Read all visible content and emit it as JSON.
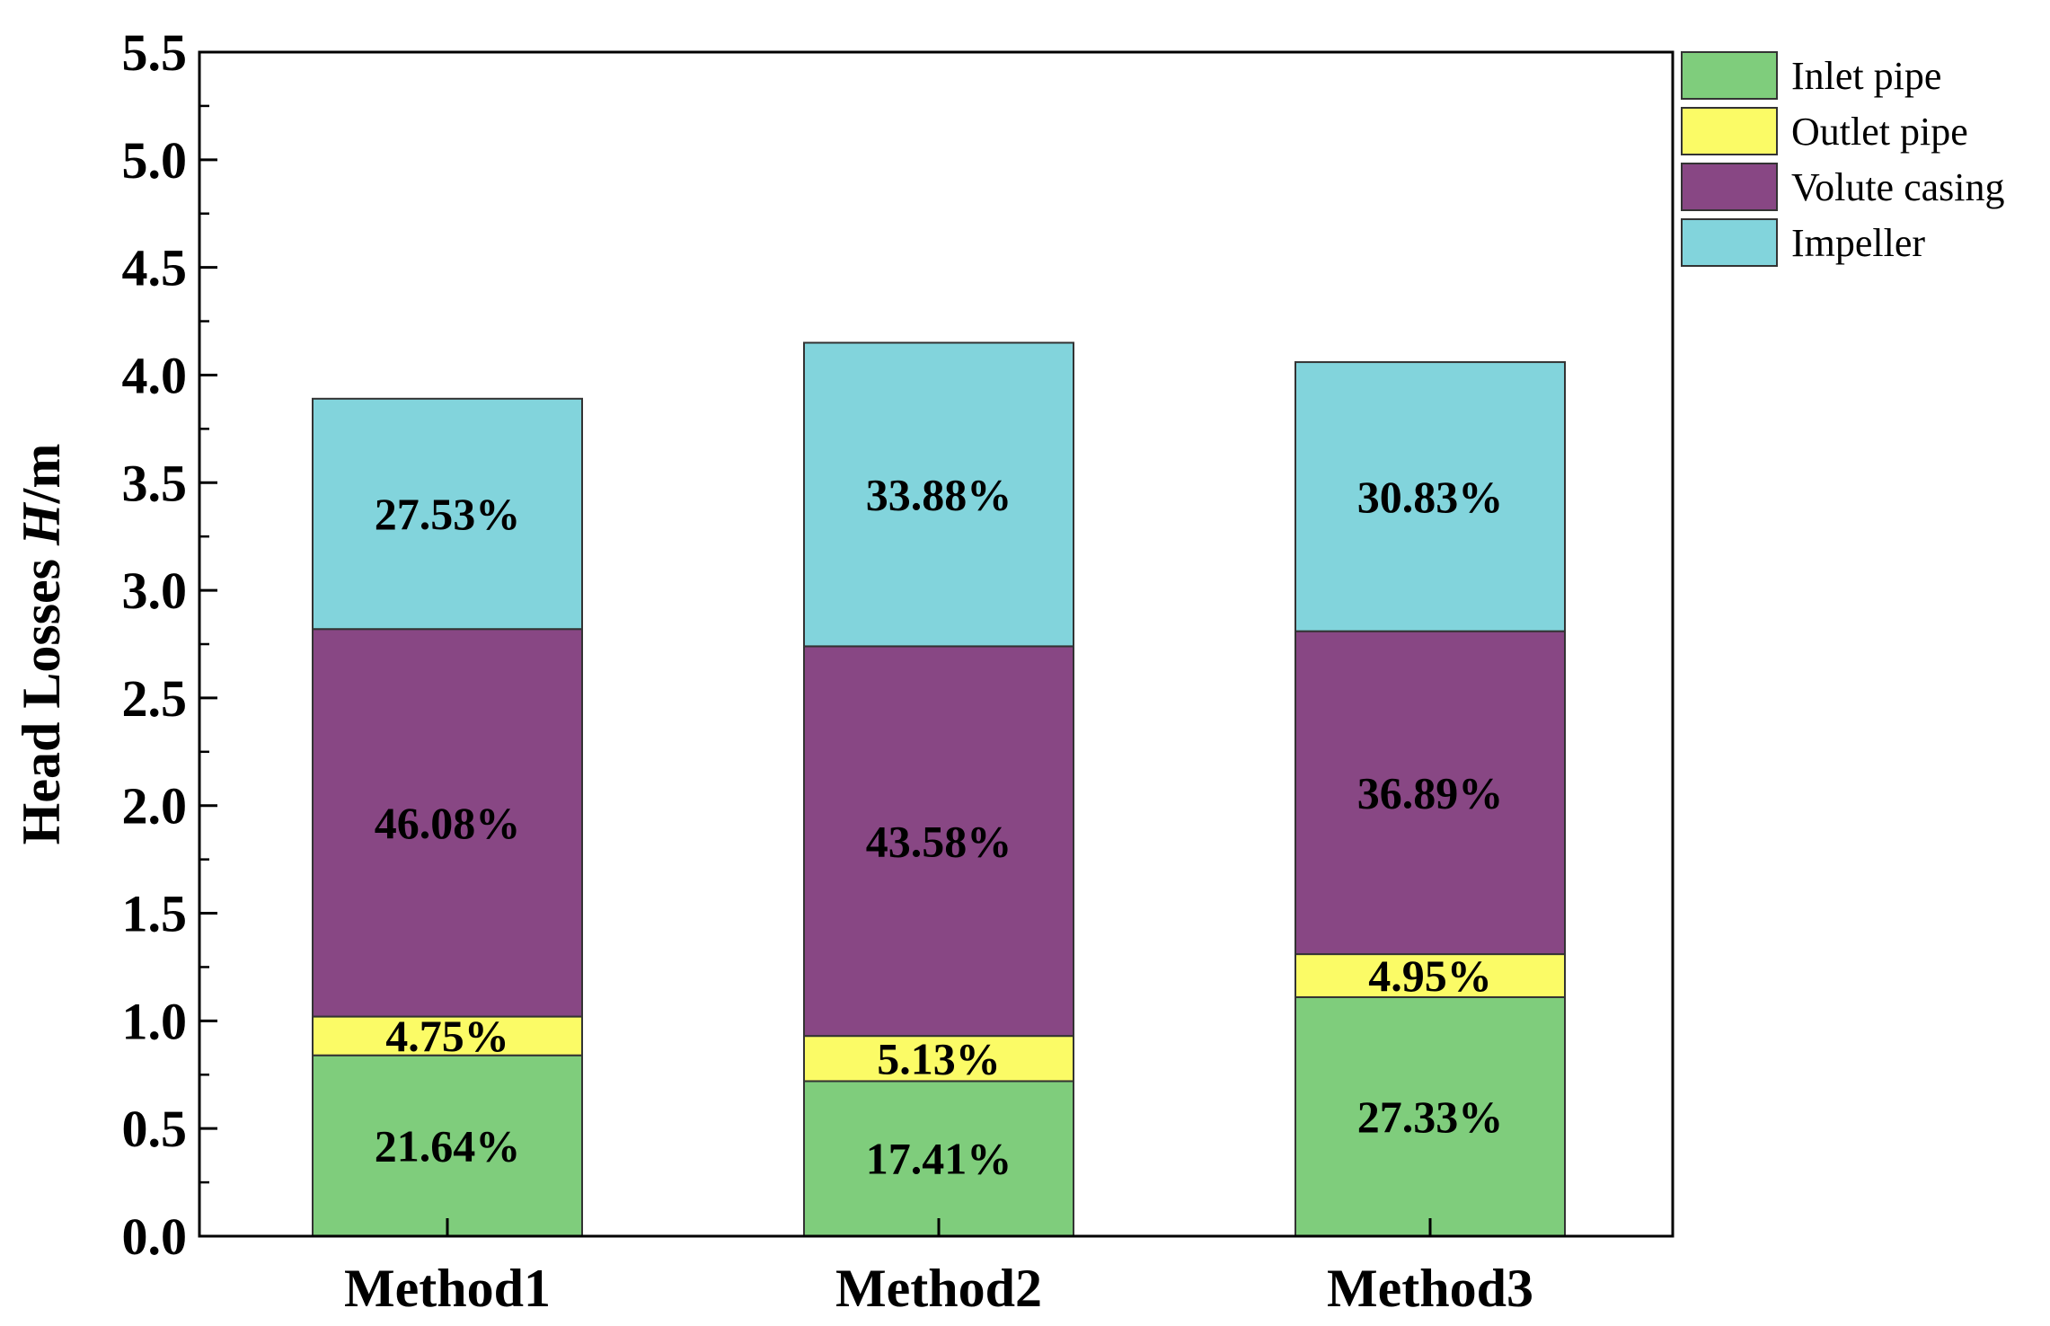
{
  "chart_data": {
    "type": "bar",
    "stacked": true,
    "categories": [
      "Method1",
      "Method2",
      "Method3"
    ],
    "ylabel_prefix": "Head Losses ",
    "ylabel_var": "H",
    "ylabel_unit": "/m",
    "ylim": [
      0,
      5.5
    ],
    "yticks": [
      0.0,
      0.5,
      1.0,
      1.5,
      2.0,
      2.5,
      3.0,
      3.5,
      4.0,
      4.5,
      5.0,
      5.5
    ],
    "ytick_labels": [
      "0.0",
      "0.5",
      "1.0",
      "1.5",
      "2.0",
      "2.5",
      "3.0",
      "3.5",
      "4.0",
      "4.5",
      "5.0",
      "5.5"
    ],
    "legend_position": "outside-top-right",
    "grid": false,
    "series": [
      {
        "name": "Inlet pipe",
        "color": "#7fcd7c",
        "values": [
          0.84,
          0.72,
          1.11
        ],
        "labels": [
          "21.64%",
          "17.41%",
          "27.33%"
        ]
      },
      {
        "name": "Outlet pipe",
        "color": "#fbfb66",
        "values": [
          0.18,
          0.21,
          0.2
        ],
        "labels": [
          "4.75%",
          "5.13%",
          "4.95%"
        ]
      },
      {
        "name": "Volute casing",
        "color": "#884784",
        "values": [
          1.8,
          1.81,
          1.5
        ],
        "labels": [
          "46.08%",
          "43.58%",
          "36.89%"
        ]
      },
      {
        "name": "Impeller",
        "color": "#82d4dc",
        "values": [
          1.07,
          1.41,
          1.25
        ],
        "labels": [
          "27.53%",
          "33.88%",
          "30.83%"
        ]
      }
    ]
  }
}
